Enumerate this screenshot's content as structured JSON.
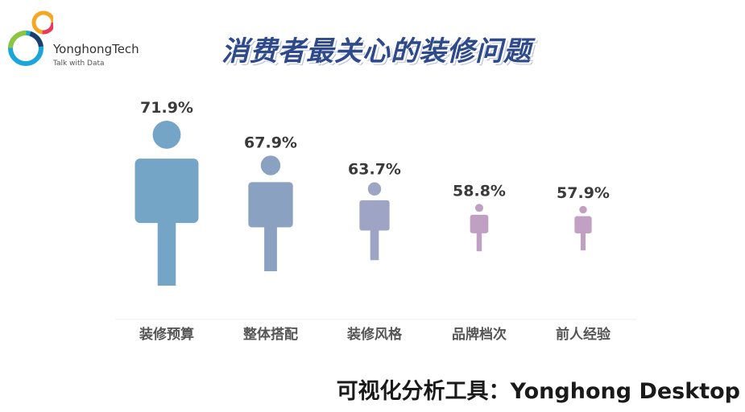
{
  "logo": {
    "brand": "YonghongTech",
    "tagline": "Talk with Data"
  },
  "title": "消费者最关心的装修问题",
  "footer": "可视化分析工具：Yonghong Desktop",
  "chart_data": {
    "type": "bar",
    "title": "消费者最关心的装修问题",
    "categories": [
      "装修预算",
      "整体搭配",
      "装修风格",
      "品牌档次",
      "前人经验"
    ],
    "values": [
      71.9,
      67.9,
      63.7,
      58.8,
      57.9
    ],
    "labels": [
      "71.9%",
      "67.9%",
      "63.7%",
      "58.8%",
      "57.9%"
    ],
    "colors": [
      "#74a4c6",
      "#8ba1c1",
      "#9ea4c4",
      "#c0a0c2",
      "#c2a0c4"
    ],
    "unit": "%",
    "grid": false,
    "legend": "none"
  }
}
